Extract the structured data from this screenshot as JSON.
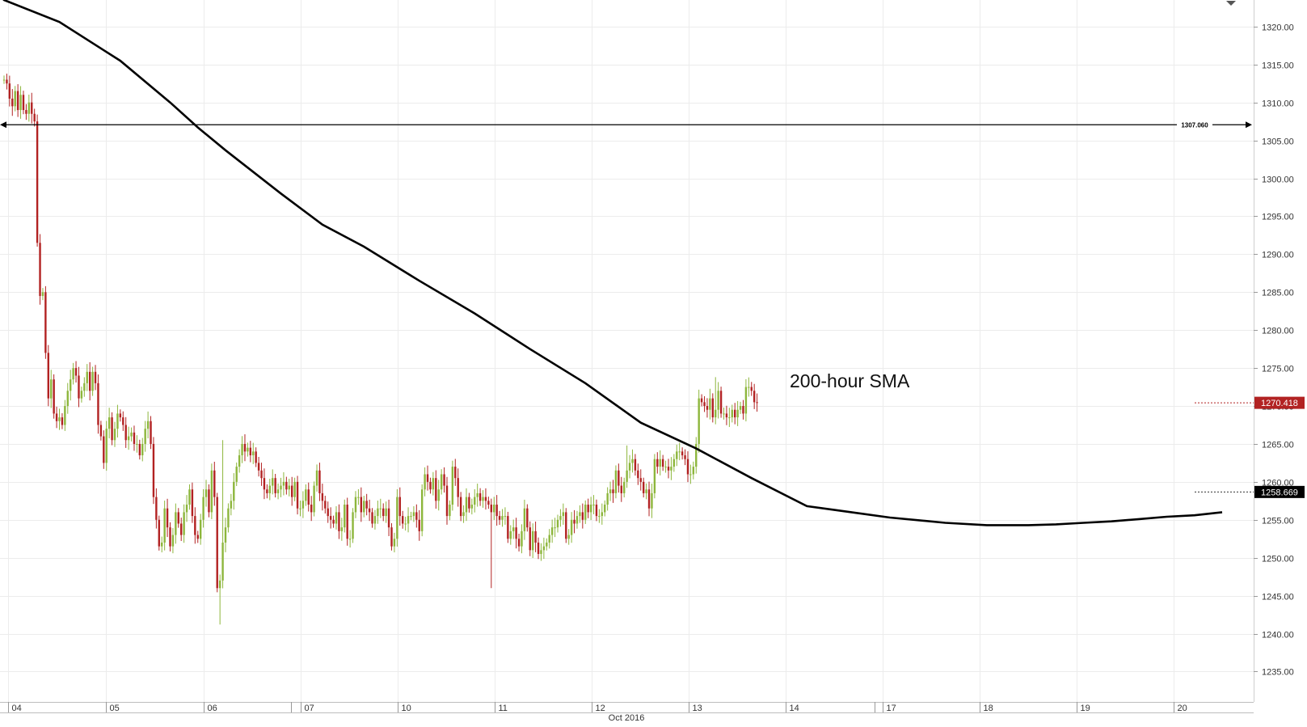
{
  "chart_data": {
    "type": "candlestick",
    "title": "",
    "xlabel": "",
    "ylabel": "",
    "ylim": [
      1231.0,
      1323.5
    ],
    "y_ticks": [
      "1235.00",
      "1240.00",
      "1245.00",
      "1250.00",
      "1255.00",
      "1260.00",
      "1265.00",
      "1270.00",
      "1275.00",
      "1280.00",
      "1285.00",
      "1290.00",
      "1295.00",
      "1300.00",
      "1305.00",
      "1310.00",
      "1315.00",
      "1320.00"
    ],
    "x_day_labels": [
      "04",
      "05",
      "06",
      "07",
      "10",
      "11",
      "12",
      "13",
      "14",
      "17",
      "18",
      "19",
      "20"
    ],
    "x_month_label": "Oct 2016",
    "grid": true,
    "horizontal_line": {
      "value": 1307.06,
      "label": "1307.060"
    },
    "price_tag": {
      "value": 1270.418,
      "label": "1270.418",
      "color": "#b22222"
    },
    "sma_tag": {
      "value": 1258.669,
      "label": "1258.669",
      "color": "#000000"
    },
    "annotation": "200-hour SMA",
    "colors": {
      "up": "#8db63c",
      "down": "#b22222",
      "sma": "#000000",
      "grid": "#ececec"
    },
    "closes": [
      1313,
      1312.5,
      1310.5,
      1309.5,
      1311.5,
      1309,
      1311,
      1309,
      1308.5,
      1310,
      1308.5,
      1307.5,
      1291.5,
      1284.5,
      1285,
      1277,
      1271,
      1273.5,
      1269,
      1268,
      1268.5,
      1267.5,
      1270,
      1272,
      1273.5,
      1275,
      1274,
      1271,
      1272,
      1273,
      1274.5,
      1272,
      1274.5,
      1273,
      1267.5,
      1266,
      1262.5,
      1267,
      1268.5,
      1265.5,
      1267,
      1269,
      1268.5,
      1267.5,
      1265.5,
      1266,
      1266.5,
      1265,
      1265,
      1263.5,
      1265,
      1267,
      1268,
      1265,
      1258,
      1255,
      1251.5,
      1252,
      1256.5,
      1254,
      1251.5,
      1253,
      1256,
      1254.5,
      1253,
      1256,
      1257,
      1259,
      1255.5,
      1253,
      1252.5,
      1255,
      1258,
      1259,
      1256,
      1261.5,
      1258,
      1246,
      1247,
      1252,
      1254,
      1256.5,
      1257.5,
      1260,
      1262,
      1263.5,
      1265,
      1264,
      1264.5,
      1263.5,
      1264,
      1262.5,
      1261.5,
      1260.5,
      1259,
      1258.5,
      1259.5,
      1260.5,
      1258.5,
      1259,
      1259.5,
      1260,
      1259,
      1259.5,
      1258,
      1260,
      1256.5,
      1256.5,
      1257.5,
      1259,
      1257,
      1256,
      1259.5,
      1261.5,
      1258.5,
      1257.5,
      1256.5,
      1255.5,
      1255,
      1254.5,
      1256,
      1253.5,
      1254,
      1257,
      1252.5,
      1252.5,
      1256,
      1258,
      1258,
      1256,
      1257.5,
      1256.5,
      1256,
      1254.5,
      1255.5,
      1256.5,
      1256.5,
      1255.5,
      1256.5,
      1254,
      1251.5,
      1252.5,
      1258,
      1255.5,
      1254.5,
      1254.5,
      1255.5,
      1255.5,
      1256,
      1255,
      1253.5,
      1259,
      1261,
      1260,
      1259,
      1260.5,
      1257.5,
      1259,
      1261,
      1259.5,
      1255.5,
      1257,
      1262,
      1260.5,
      1258,
      1255.5,
      1256,
      1258,
      1256.5,
      1257,
      1258,
      1258.5,
      1257.5,
      1258,
      1257.5,
      1257,
      1256,
      1257,
      1255.5,
      1255,
      1255.5,
      1255.5,
      1252.5,
      1253.5,
      1254,
      1252.5,
      1251.5,
      1253.5,
      1256.5,
      1254,
      1251,
      1253.5,
      1252,
      1250.5,
      1251,
      1251.5,
      1252,
      1253,
      1254,
      1254,
      1255,
      1255.5,
      1256,
      1252.5,
      1253,
      1255,
      1254.5,
      1255.5,
      1256,
      1255,
      1257,
      1256,
      1257,
      1257,
      1255.5,
      1255.5,
      1256,
      1257,
      1258.5,
      1259,
      1258.5,
      1261.5,
      1259.5,
      1258.5,
      1260,
      1261.5,
      1262.5,
      1263,
      1261.5,
      1260.5,
      1260,
      1258.5,
      1259,
      1256.5,
      1258.5,
      1263,
      1262,
      1263,
      1262,
      1262,
      1261.5,
      1262,
      1263,
      1264,
      1264,
      1263.5,
      1263,
      1261,
      1261,
      1262,
      1265,
      1271,
      1270.5,
      1270,
      1269.5,
      1271,
      1268.5,
      1269.5,
      1272,
      1269,
      1269,
      1268.5,
      1268.5,
      1269.5,
      1268.5,
      1269.5,
      1270,
      1269,
      1272.5,
      1272.5,
      1272,
      1270.5,
      1270.4
    ],
    "sma": {
      "name": "200-hour SMA",
      "points": [
        [
          -12,
          1328
        ],
        [
          0,
          1323.5
        ],
        [
          20,
          1320.6
        ],
        [
          42,
          1315.5
        ],
        [
          60,
          1310
        ],
        [
          70,
          1306.7
        ],
        [
          80,
          1303.7
        ],
        [
          100,
          1298
        ],
        [
          115,
          1293.9
        ],
        [
          130,
          1291
        ],
        [
          150,
          1286.5
        ],
        [
          170,
          1282.2
        ],
        [
          190,
          1277.5
        ],
        [
          210,
          1273
        ],
        [
          230,
          1267.8
        ],
        [
          250,
          1264.4
        ],
        [
          270,
          1260.5
        ],
        [
          290,
          1256.8
        ],
        [
          300,
          1256.3
        ],
        [
          320,
          1255.3
        ],
        [
          340,
          1254.6
        ],
        [
          355,
          1254.3
        ],
        [
          360,
          1254.3
        ],
        [
          370,
          1254.3
        ],
        [
          380,
          1254.4
        ],
        [
          390,
          1254.6
        ],
        [
          400,
          1254.8
        ],
        [
          410,
          1255.1
        ],
        [
          420,
          1255.4
        ],
        [
          430,
          1255.6
        ],
        [
          435,
          1255.8
        ],
        [
          440,
          1256
        ]
      ]
    }
  }
}
